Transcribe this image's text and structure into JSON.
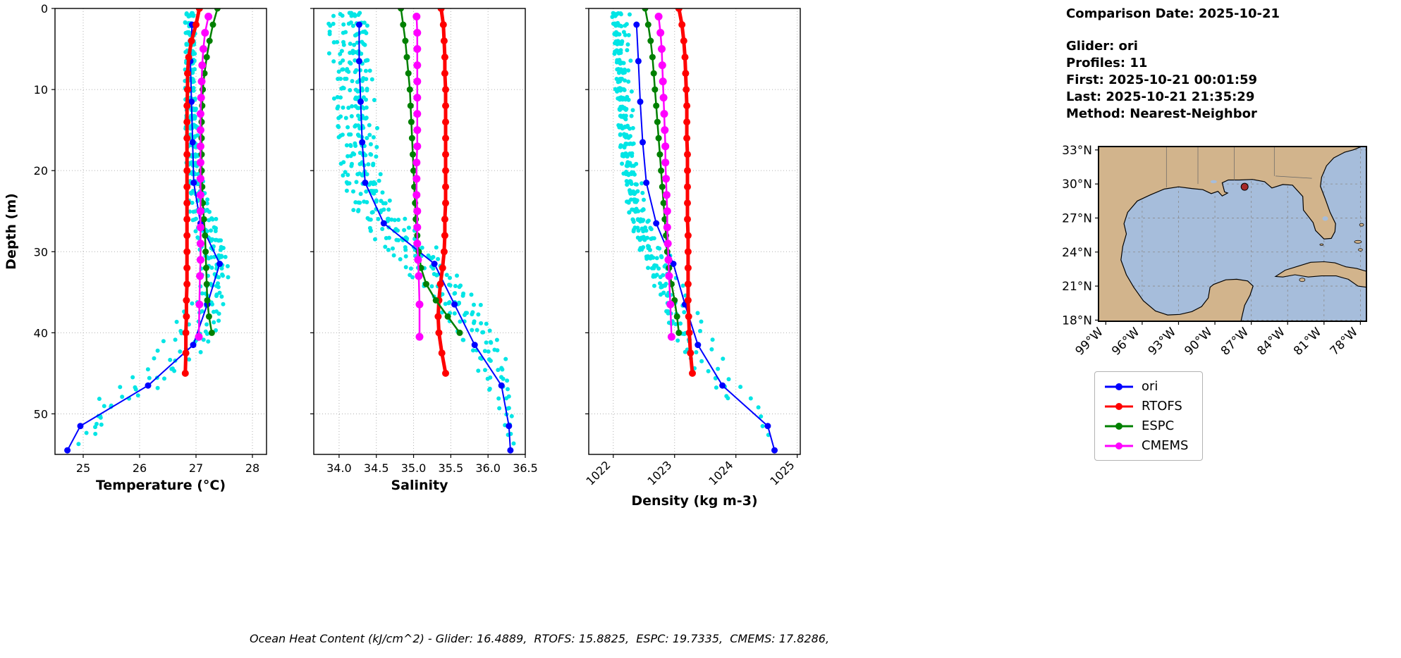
{
  "figure": {
    "info": {
      "comparison_date": "Comparison Date: 2025-10-21",
      "glider": "Glider: ori",
      "profiles": "Profiles: 11",
      "first": "First: 2025-10-21 00:01:59",
      "last": "Last: 2025-10-21 21:35:29",
      "method": "Method: Nearest-Neighbor"
    },
    "caption": "Ocean Heat Content (kJ/cm^2) - Glider: 16.4889,  RTOFS: 15.8825,  ESPC: 19.7335,  CMEMS: 17.8286,",
    "legend": [
      {
        "label": "ori",
        "color": "#0000FF"
      },
      {
        "label": "RTOFS",
        "color": "#FF0000"
      },
      {
        "label": "ESPC",
        "color": "#008000"
      },
      {
        "label": "CMEMS",
        "color": "#FF00FF"
      }
    ]
  },
  "map": {
    "lat_ticks": [
      {
        "value": 33,
        "label": "33°N"
      },
      {
        "value": 30,
        "label": "30°N"
      },
      {
        "value": 27,
        "label": "27°N"
      },
      {
        "value": 24,
        "label": "24°N"
      },
      {
        "value": 21,
        "label": "21°N"
      },
      {
        "value": 18,
        "label": "18°N"
      }
    ],
    "lon_ticks": [
      {
        "value": -99,
        "label": "99°W"
      },
      {
        "value": -96,
        "label": "96°W"
      },
      {
        "value": -93,
        "label": "93°W"
      },
      {
        "value": -90,
        "label": "90°W"
      },
      {
        "value": -87,
        "label": "87°W"
      },
      {
        "value": -84,
        "label": "84°W"
      },
      {
        "value": -81,
        "label": "81°W"
      },
      {
        "value": -78,
        "label": "78°W"
      }
    ],
    "glider_position": {
      "lon": -87.55,
      "lat": 29.75
    },
    "colors": {
      "land": "#D2B48C",
      "water": "#A6BDDB",
      "border": "#000000",
      "marker": "#A52A2A"
    }
  },
  "chart_data": [
    {
      "type": "line",
      "panel_name": "temperature-panel",
      "xlabel": "Temperature (°C)",
      "ylabel": "Depth (m)",
      "xlim": [
        24.5,
        28.25
      ],
      "ylim": [
        0,
        55
      ],
      "xticks": [
        25,
        26,
        27,
        28
      ],
      "yticks": [
        0,
        10,
        20,
        30,
        40,
        50
      ],
      "xtick_decimals": 0,
      "xtick_rotation": 0,
      "show_ytick_labels": true,
      "grid": true,
      "series": [
        {
          "name": "ori",
          "color": "#0000FF",
          "lw": 2,
          "marker_r": 4.5,
          "depth": [
            2,
            6.5,
            11.5,
            16.5,
            21.5,
            26.5,
            31.5,
            36.5,
            41.5,
            46.5,
            51.5,
            54.5
          ],
          "values": [
            26.93,
            26.9,
            26.92,
            26.94,
            26.96,
            27.08,
            27.42,
            27.2,
            26.95,
            26.15,
            24.95,
            24.72
          ]
        },
        {
          "name": "RTOFS",
          "color": "#FF0000",
          "lw": 5,
          "marker_r": 5,
          "depth": [
            0,
            2,
            4,
            6,
            8,
            10,
            12,
            14,
            16,
            18,
            20,
            22,
            24,
            26,
            28,
            30,
            32,
            34,
            36,
            38,
            40,
            42.5,
            45
          ],
          "values": [
            27.06,
            27.0,
            26.92,
            26.87,
            26.85,
            26.85,
            26.84,
            26.84,
            26.84,
            26.84,
            26.84,
            26.84,
            26.84,
            26.84,
            26.84,
            26.84,
            26.84,
            26.84,
            26.83,
            26.83,
            26.82,
            26.82,
            26.81
          ]
        },
        {
          "name": "ESPC",
          "color": "#008000",
          "lw": 2.5,
          "marker_r": 4.5,
          "depth": [
            0,
            2,
            4,
            6,
            8,
            10,
            12,
            14,
            16,
            18,
            20,
            22,
            24,
            26,
            28,
            30,
            32,
            34,
            36,
            38,
            40
          ],
          "values": [
            27.38,
            27.3,
            27.24,
            27.19,
            27.15,
            27.12,
            27.11,
            27.1,
            27.1,
            27.1,
            27.1,
            27.11,
            27.12,
            27.14,
            27.16,
            27.17,
            27.18,
            27.19,
            27.2,
            27.23,
            27.28
          ]
        },
        {
          "name": "CMEMS",
          "color": "#FF00FF",
          "lw": 2.5,
          "marker_r": 5.5,
          "depth": [
            1,
            3,
            5,
            7,
            9,
            11,
            13,
            15,
            17,
            19,
            21,
            23,
            25,
            27,
            29,
            31,
            33,
            36.5,
            40.5
          ],
          "values": [
            27.22,
            27.16,
            27.13,
            27.11,
            27.1,
            27.09,
            27.08,
            27.08,
            27.08,
            27.08,
            27.08,
            27.08,
            27.08,
            27.08,
            27.08,
            27.08,
            27.07,
            27.06,
            27.05
          ]
        }
      ],
      "scatter": {
        "name": "glider-raw-profiles",
        "color": "#00E5E5",
        "r": 3,
        "profiles": 11,
        "envelope": {
          "depths": [
            0,
            10,
            20,
            25,
            30,
            35,
            40,
            45,
            50,
            55
          ],
          "mean": [
            26.88,
            26.88,
            26.92,
            27.05,
            27.3,
            27.28,
            26.95,
            26.3,
            25.15,
            24.85
          ],
          "spread": [
            0.1,
            0.1,
            0.14,
            0.22,
            0.28,
            0.3,
            0.55,
            0.65,
            0.42,
            0.18
          ]
        }
      }
    },
    {
      "type": "line",
      "panel_name": "salinity-panel",
      "xlabel": "Salinity",
      "ylabel": "",
      "xlim": [
        33.66,
        36.5
      ],
      "ylim": [
        0,
        55
      ],
      "xticks": [
        34.0,
        34.5,
        35.0,
        35.5,
        36.0,
        36.5
      ],
      "yticks": [
        0,
        10,
        20,
        30,
        40,
        50
      ],
      "xtick_decimals": 1,
      "xtick_rotation": 0,
      "show_ytick_labels": false,
      "grid": true,
      "series": [
        {
          "name": "ori",
          "color": "#0000FF",
          "lw": 2,
          "marker_r": 4.5,
          "depth": [
            2,
            6.5,
            11.5,
            16.5,
            21.5,
            26.5,
            31.5,
            36.5,
            41.5,
            46.5,
            51.5,
            54.5
          ],
          "values": [
            34.27,
            34.27,
            34.29,
            34.31,
            34.35,
            34.6,
            35.28,
            35.55,
            35.82,
            36.18,
            36.28,
            36.3
          ]
        },
        {
          "name": "RTOFS",
          "color": "#FF0000",
          "lw": 5,
          "marker_r": 5,
          "depth": [
            0,
            2,
            4,
            6,
            8,
            10,
            12,
            14,
            16,
            18,
            20,
            22,
            24,
            26,
            28,
            30,
            32,
            34,
            36,
            38,
            40,
            42.5,
            45
          ],
          "values": [
            35.37,
            35.4,
            35.41,
            35.42,
            35.42,
            35.43,
            35.43,
            35.43,
            35.43,
            35.43,
            35.43,
            35.43,
            35.43,
            35.42,
            35.42,
            35.41,
            35.39,
            35.36,
            35.34,
            35.33,
            35.34,
            35.38,
            35.43
          ]
        },
        {
          "name": "ESPC",
          "color": "#008000",
          "lw": 2.5,
          "marker_r": 4.5,
          "depth": [
            0,
            2,
            4,
            6,
            8,
            10,
            12,
            14,
            16,
            18,
            20,
            22,
            24,
            26,
            28,
            30,
            32,
            34,
            36,
            38,
            40
          ],
          "values": [
            34.83,
            34.86,
            34.89,
            34.91,
            34.93,
            34.95,
            34.96,
            34.97,
            34.98,
            34.99,
            35.0,
            35.01,
            35.02,
            35.03,
            35.05,
            35.07,
            35.1,
            35.17,
            35.3,
            35.46,
            35.62
          ]
        },
        {
          "name": "CMEMS",
          "color": "#FF00FF",
          "lw": 2.5,
          "marker_r": 5.5,
          "depth": [
            1,
            3,
            5,
            7,
            9,
            11,
            13,
            15,
            17,
            19,
            21,
            23,
            25,
            27,
            29,
            31,
            33,
            36.5,
            40.5
          ],
          "values": [
            35.04,
            35.05,
            35.05,
            35.05,
            35.05,
            35.05,
            35.05,
            35.05,
            35.05,
            35.04,
            35.04,
            35.04,
            35.05,
            35.05,
            35.05,
            35.06,
            35.07,
            35.08,
            35.08
          ]
        }
      ],
      "scatter": {
        "name": "glider-raw-profiles",
        "color": "#00E5E5",
        "r": 3,
        "profiles": 11,
        "envelope": {
          "depths": [
            0,
            10,
            20,
            25,
            30,
            35,
            40,
            45,
            50,
            55
          ],
          "mean": [
            34.15,
            34.2,
            34.3,
            34.5,
            35.0,
            35.5,
            35.85,
            36.1,
            36.28,
            36.32
          ],
          "spread": [
            0.38,
            0.34,
            0.32,
            0.38,
            0.45,
            0.4,
            0.35,
            0.25,
            0.12,
            0.08
          ]
        }
      }
    },
    {
      "type": "line",
      "panel_name": "density-panel",
      "xlabel": "Density (kg m-3)",
      "ylabel": "",
      "xlim": [
        1021.6,
        1025.05
      ],
      "ylim": [
        0,
        55
      ],
      "xticks": [
        1022,
        1023,
        1024,
        1025
      ],
      "yticks": [
        0,
        10,
        20,
        30,
        40,
        50
      ],
      "xtick_decimals": 0,
      "xtick_rotation": 45,
      "show_ytick_labels": false,
      "grid": true,
      "series": [
        {
          "name": "ori",
          "color": "#0000FF",
          "lw": 2,
          "marker_r": 4.5,
          "depth": [
            2,
            6.5,
            11.5,
            16.5,
            21.5,
            26.5,
            31.5,
            36.5,
            41.5,
            46.5,
            51.5,
            54.5
          ],
          "values": [
            1022.38,
            1022.41,
            1022.44,
            1022.48,
            1022.54,
            1022.7,
            1022.98,
            1023.17,
            1023.38,
            1023.78,
            1024.52,
            1024.63
          ]
        },
        {
          "name": "RTOFS",
          "color": "#FF0000",
          "lw": 5,
          "marker_r": 5,
          "depth": [
            0,
            2,
            4,
            6,
            8,
            10,
            12,
            14,
            16,
            18,
            20,
            22,
            24,
            26,
            28,
            30,
            32,
            34,
            36,
            38,
            40,
            42.5,
            45
          ],
          "values": [
            1023.07,
            1023.12,
            1023.15,
            1023.17,
            1023.18,
            1023.19,
            1023.2,
            1023.2,
            1023.2,
            1023.21,
            1023.21,
            1023.21,
            1023.21,
            1023.21,
            1023.22,
            1023.22,
            1023.22,
            1023.22,
            1023.22,
            1023.23,
            1023.24,
            1023.26,
            1023.29
          ]
        },
        {
          "name": "ESPC",
          "color": "#008000",
          "lw": 2.5,
          "marker_r": 4.5,
          "depth": [
            0,
            2,
            4,
            6,
            8,
            10,
            12,
            14,
            16,
            18,
            20,
            22,
            24,
            26,
            28,
            30,
            32,
            34,
            36,
            38,
            40
          ],
          "values": [
            1022.52,
            1022.57,
            1022.61,
            1022.64,
            1022.66,
            1022.68,
            1022.7,
            1022.72,
            1022.74,
            1022.76,
            1022.78,
            1022.8,
            1022.82,
            1022.84,
            1022.86,
            1022.88,
            1022.91,
            1022.95,
            1023.0,
            1023.04,
            1023.07
          ]
        },
        {
          "name": "CMEMS",
          "color": "#FF00FF",
          "lw": 2.5,
          "marker_r": 5.5,
          "depth": [
            1,
            3,
            5,
            7,
            9,
            11,
            13,
            15,
            17,
            19,
            21,
            23,
            25,
            27,
            29,
            31,
            33,
            36.5,
            40.5
          ],
          "values": [
            1022.74,
            1022.77,
            1022.79,
            1022.8,
            1022.81,
            1022.82,
            1022.83,
            1022.84,
            1022.85,
            1022.85,
            1022.86,
            1022.87,
            1022.88,
            1022.88,
            1022.89,
            1022.9,
            1022.91,
            1022.93,
            1022.95
          ]
        }
      ],
      "scatter": {
        "name": "glider-raw-profiles",
        "color": "#00E5E5",
        "r": 3,
        "profiles": 11,
        "envelope": {
          "depths": [
            0,
            10,
            20,
            25,
            30,
            35,
            40,
            45,
            50,
            55
          ],
          "mean": [
            1022.15,
            1022.2,
            1022.32,
            1022.48,
            1022.72,
            1023.02,
            1023.32,
            1023.72,
            1024.35,
            1024.55
          ],
          "spread": [
            0.2,
            0.18,
            0.18,
            0.26,
            0.32,
            0.36,
            0.4,
            0.4,
            0.25,
            0.1
          ]
        }
      }
    }
  ]
}
